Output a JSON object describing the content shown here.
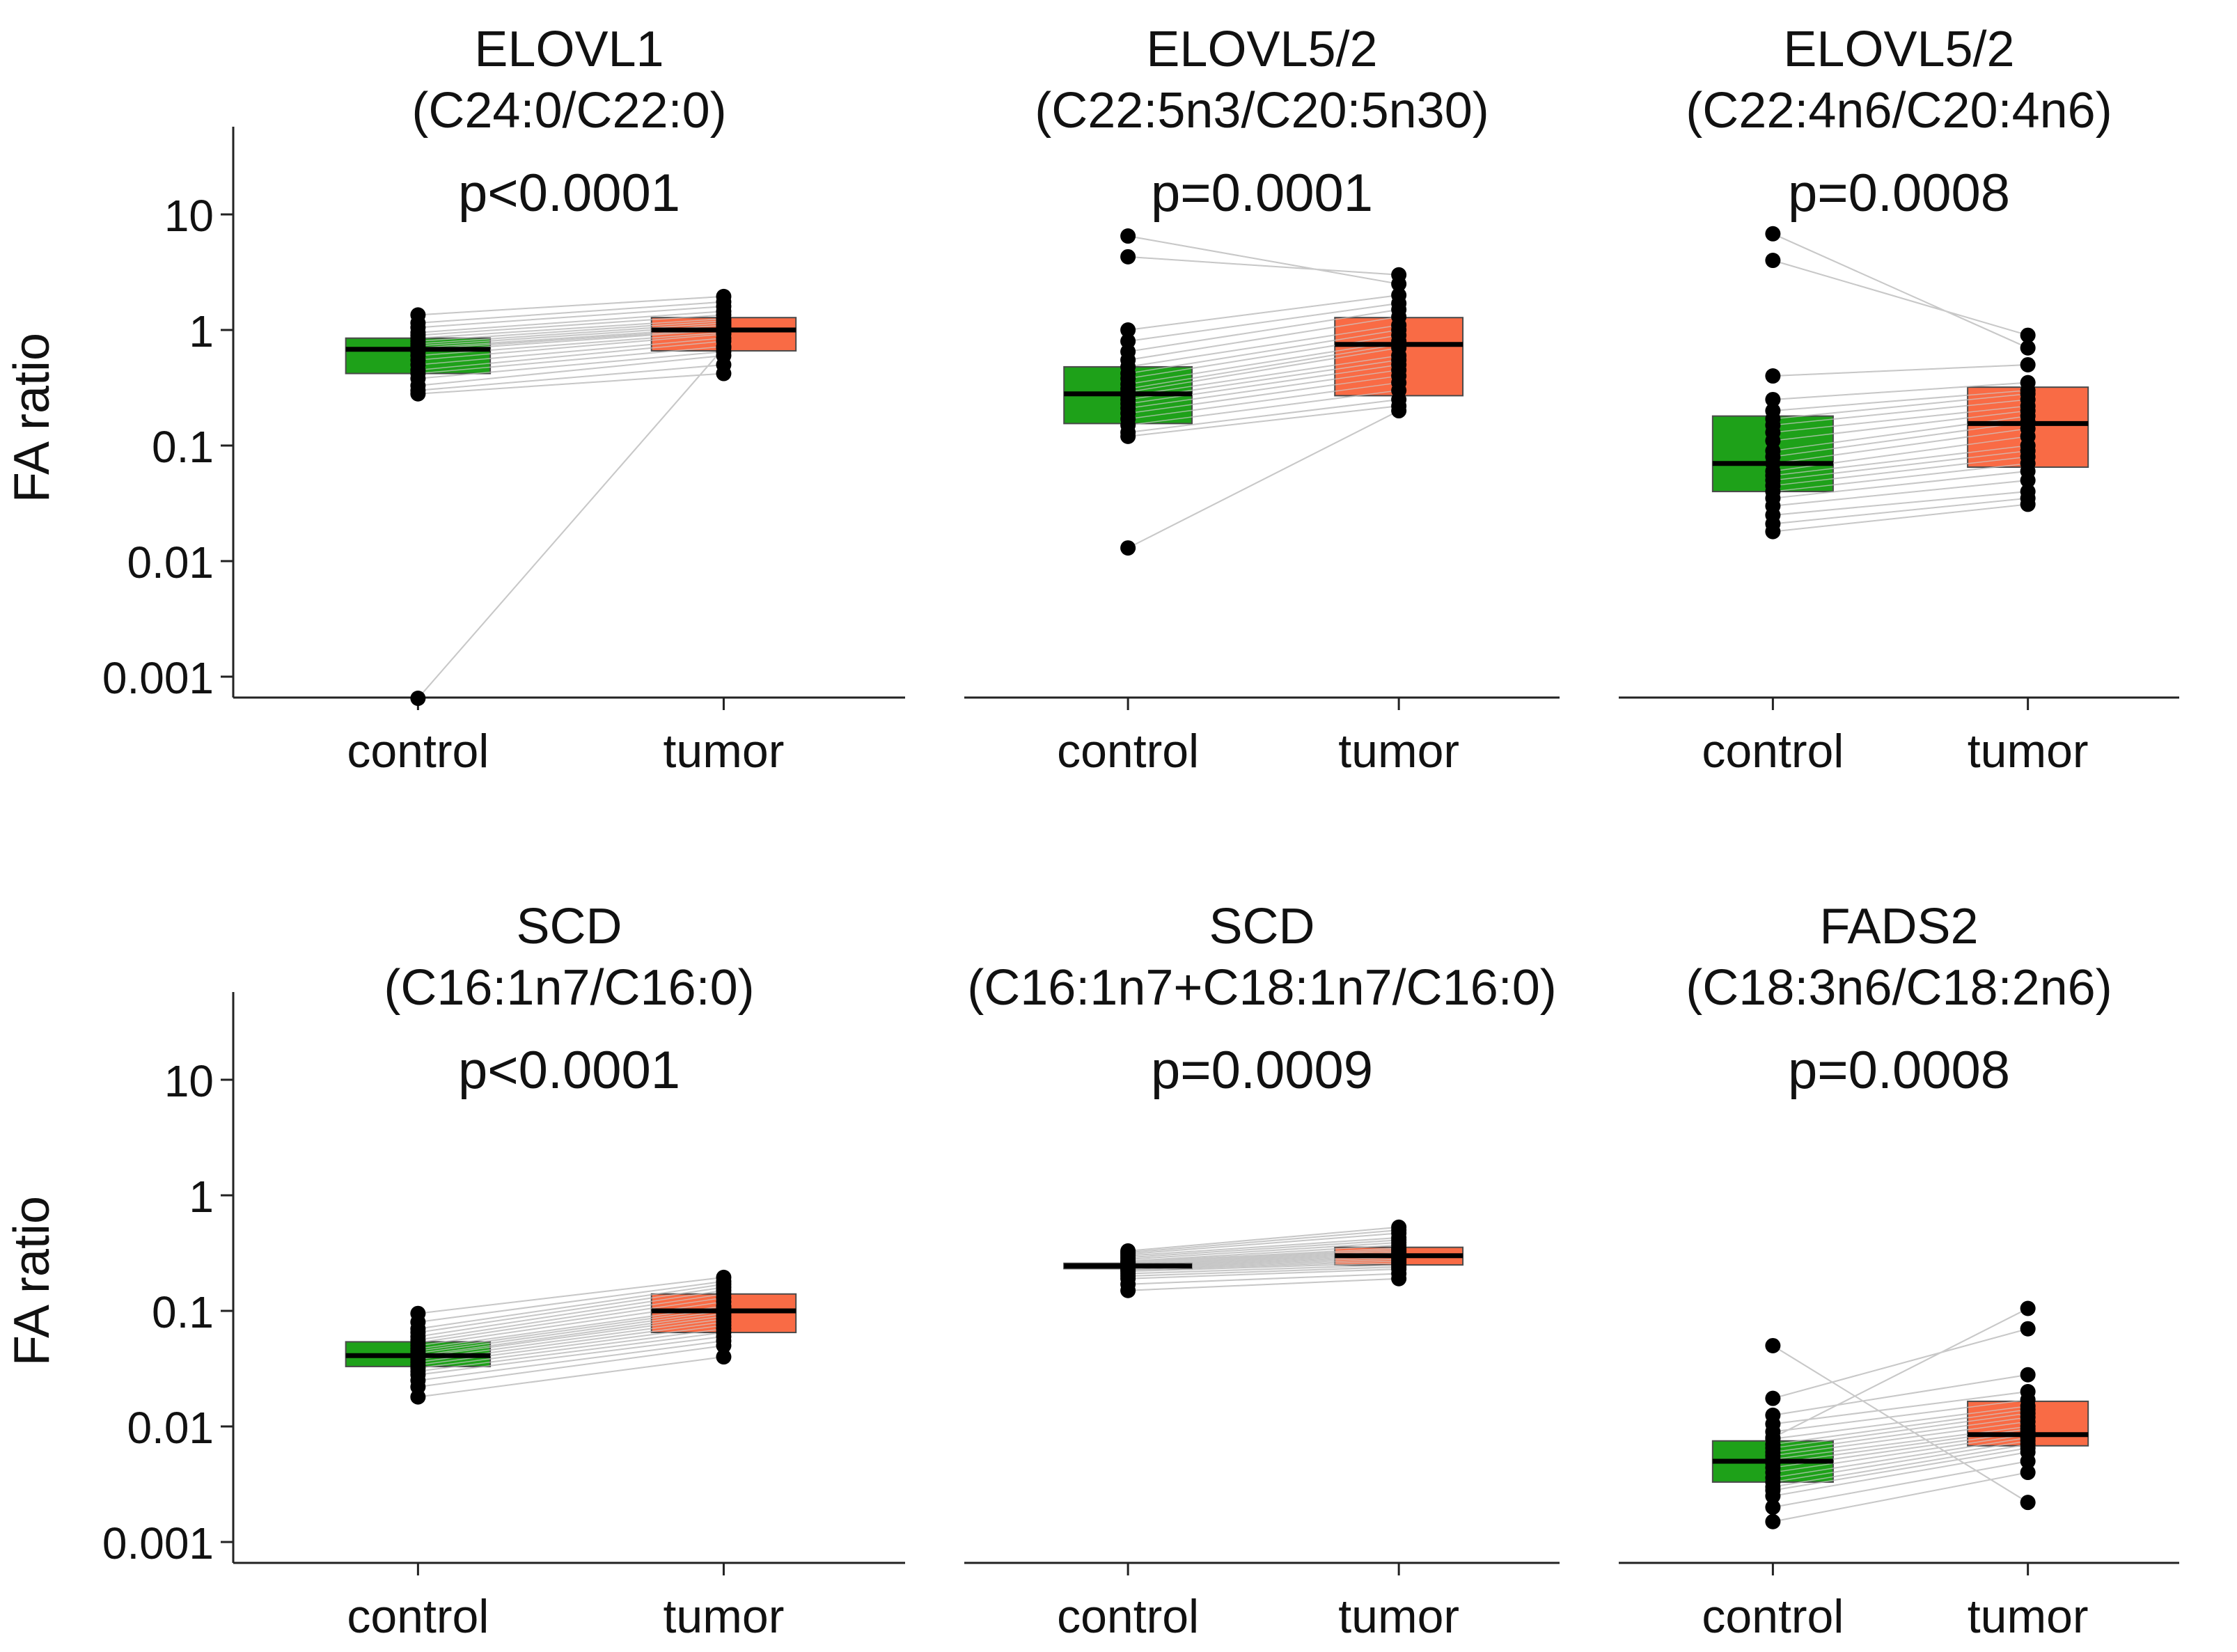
{
  "figure": {
    "y_axis_label": "FA ratio",
    "y_ticks": [
      "0.001",
      "0.01",
      "0.1",
      "1",
      "10"
    ],
    "x_categories": [
      "control",
      "tumor"
    ],
    "colors": {
      "control": "#129c0d",
      "tumor": "#f9633b",
      "median": "#000000",
      "pair_line": "#bdbdbd",
      "axis": "#222222"
    }
  },
  "chart_data": [
    {
      "type": "box",
      "title": "ELOVL1",
      "subtitle": "(C24:0/C22:0)",
      "pvalue": "p<0.0001",
      "yscale": "log",
      "ylim": [
        0.00065,
        60
      ],
      "categories": [
        "control",
        "tumor"
      ],
      "boxes": [
        {
          "name": "control",
          "q1": 0.42,
          "median": 0.68,
          "q3": 0.85
        },
        {
          "name": "tumor",
          "q1": 0.66,
          "median": 1.0,
          "q3": 1.28
        }
      ],
      "pairs": [
        [
          0.00065,
          0.7
        ],
        [
          0.28,
          0.42
        ],
        [
          0.3,
          0.5
        ],
        [
          0.33,
          0.6
        ],
        [
          0.38,
          0.65
        ],
        [
          0.42,
          0.72
        ],
        [
          0.45,
          0.8
        ],
        [
          0.5,
          0.85
        ],
        [
          0.55,
          0.92
        ],
        [
          0.6,
          0.95
        ],
        [
          0.65,
          1.0
        ],
        [
          0.68,
          1.02
        ],
        [
          0.7,
          1.05
        ],
        [
          0.73,
          1.1
        ],
        [
          0.76,
          1.15
        ],
        [
          0.8,
          1.2
        ],
        [
          0.85,
          1.25
        ],
        [
          0.9,
          1.35
        ],
        [
          0.95,
          1.45
        ],
        [
          1.05,
          1.6
        ],
        [
          1.15,
          1.75
        ],
        [
          1.35,
          1.95
        ]
      ]
    },
    {
      "type": "box",
      "title": "ELOVL5/2",
      "subtitle": "(C22:5n3/C20:5n30)",
      "pvalue": "p=0.0001",
      "yscale": "log",
      "ylim": [
        0.00065,
        60
      ],
      "categories": [
        "control",
        "tumor"
      ],
      "boxes": [
        {
          "name": "control",
          "q1": 0.155,
          "median": 0.28,
          "q3": 0.48
        },
        {
          "name": "tumor",
          "q1": 0.27,
          "median": 0.75,
          "q3": 1.28
        }
      ],
      "pairs": [
        [
          0.013,
          0.2
        ],
        [
          0.12,
          0.22
        ],
        [
          0.13,
          0.25
        ],
        [
          0.15,
          0.3
        ],
        [
          0.17,
          0.35
        ],
        [
          0.19,
          0.4
        ],
        [
          0.21,
          0.45
        ],
        [
          0.23,
          0.5
        ],
        [
          0.25,
          0.55
        ],
        [
          0.27,
          0.6
        ],
        [
          0.29,
          0.7
        ],
        [
          0.31,
          0.75
        ],
        [
          0.34,
          0.8
        ],
        [
          0.38,
          0.9
        ],
        [
          0.42,
          1.0
        ],
        [
          0.48,
          1.1
        ],
        [
          0.55,
          1.3
        ],
        [
          0.65,
          1.5
        ],
        [
          0.8,
          1.7
        ],
        [
          1.0,
          2.0
        ],
        [
          4.3,
          3.0
        ],
        [
          6.5,
          2.5
        ]
      ]
    },
    {
      "type": "box",
      "title": "ELOVL5/2",
      "subtitle": "(C22:4n6/C20:4n6)",
      "pvalue": "p=0.0008",
      "yscale": "log",
      "ylim": [
        0.00065,
        60
      ],
      "categories": [
        "control",
        "tumor"
      ],
      "boxes": [
        {
          "name": "control",
          "q1": 0.04,
          "median": 0.07,
          "q3": 0.18
        },
        {
          "name": "tumor",
          "q1": 0.065,
          "median": 0.155,
          "q3": 0.32
        }
      ],
      "pairs": [
        [
          0.018,
          0.031
        ],
        [
          0.021,
          0.035
        ],
        [
          0.025,
          0.04
        ],
        [
          0.03,
          0.05
        ],
        [
          0.035,
          0.06
        ],
        [
          0.04,
          0.07
        ],
        [
          0.045,
          0.08
        ],
        [
          0.05,
          0.09
        ],
        [
          0.055,
          0.1
        ],
        [
          0.06,
          0.12
        ],
        [
          0.07,
          0.14
        ],
        [
          0.08,
          0.16
        ],
        [
          0.09,
          0.18
        ],
        [
          0.11,
          0.2
        ],
        [
          0.13,
          0.22
        ],
        [
          0.15,
          0.25
        ],
        [
          0.17,
          0.28
        ],
        [
          0.2,
          0.3
        ],
        [
          0.25,
          0.35
        ],
        [
          0.4,
          0.5
        ],
        [
          4.0,
          0.9
        ],
        [
          6.8,
          0.7
        ]
      ]
    },
    {
      "type": "box",
      "title": "SCD",
      "subtitle": "(C16:1n7/C16:0)",
      "pvalue": "p<0.0001",
      "yscale": "log",
      "ylim": [
        0.00065,
        60
      ],
      "categories": [
        "control",
        "tumor"
      ],
      "boxes": [
        {
          "name": "control",
          "q1": 0.033,
          "median": 0.041,
          "q3": 0.054
        },
        {
          "name": "tumor",
          "q1": 0.065,
          "median": 0.1,
          "q3": 0.14
        }
      ],
      "pairs": [
        [
          0.018,
          0.04
        ],
        [
          0.022,
          0.05
        ],
        [
          0.025,
          0.055
        ],
        [
          0.028,
          0.06
        ],
        [
          0.03,
          0.065
        ],
        [
          0.032,
          0.07
        ],
        [
          0.034,
          0.075
        ],
        [
          0.036,
          0.08
        ],
        [
          0.038,
          0.085
        ],
        [
          0.04,
          0.09
        ],
        [
          0.041,
          0.095
        ],
        [
          0.043,
          0.1
        ],
        [
          0.045,
          0.105
        ],
        [
          0.047,
          0.11
        ],
        [
          0.05,
          0.12
        ],
        [
          0.053,
          0.13
        ],
        [
          0.056,
          0.14
        ],
        [
          0.06,
          0.15
        ],
        [
          0.065,
          0.16
        ],
        [
          0.07,
          0.17
        ],
        [
          0.08,
          0.18
        ],
        [
          0.095,
          0.195
        ]
      ]
    },
    {
      "type": "box",
      "title": "SCD",
      "subtitle": "(C16:1n7+C18:1n7/C16:0)",
      "pvalue": "p=0.0009",
      "yscale": "log",
      "ylim": [
        0.00065,
        60
      ],
      "categories": [
        "control",
        "tumor"
      ],
      "boxes": [
        {
          "name": "control",
          "q1": 0.232,
          "median": 0.245,
          "q3": 0.258
        },
        {
          "name": "tumor",
          "q1": 0.25,
          "median": 0.3,
          "q3": 0.355
        }
      ],
      "pairs": [
        [
          0.15,
          0.19
        ],
        [
          0.17,
          0.21
        ],
        [
          0.19,
          0.23
        ],
        [
          0.2,
          0.24
        ],
        [
          0.21,
          0.25
        ],
        [
          0.22,
          0.26
        ],
        [
          0.225,
          0.27
        ],
        [
          0.23,
          0.28
        ],
        [
          0.235,
          0.29
        ],
        [
          0.24,
          0.3
        ],
        [
          0.245,
          0.31
        ],
        [
          0.25,
          0.32
        ],
        [
          0.255,
          0.33
        ],
        [
          0.26,
          0.34
        ],
        [
          0.265,
          0.35
        ],
        [
          0.27,
          0.37
        ],
        [
          0.28,
          0.39
        ],
        [
          0.29,
          0.41
        ],
        [
          0.3,
          0.43
        ],
        [
          0.31,
          0.47
        ],
        [
          0.32,
          0.5
        ],
        [
          0.33,
          0.53
        ]
      ]
    },
    {
      "type": "box",
      "title": "FADS2",
      "subtitle": "(C18:3n6/C18:2n6)",
      "pvalue": "p=0.0008",
      "yscale": "log",
      "ylim": [
        0.00065,
        60
      ],
      "categories": [
        "control",
        "tumor"
      ],
      "boxes": [
        {
          "name": "control",
          "q1": 0.0033,
          "median": 0.005,
          "q3": 0.0075
        },
        {
          "name": "tumor",
          "q1": 0.0068,
          "median": 0.0085,
          "q3": 0.0165
        }
      ],
      "pairs": [
        [
          0.0015,
          0.004
        ],
        [
          0.002,
          0.005
        ],
        [
          0.0025,
          0.006
        ],
        [
          0.0028,
          0.0065
        ],
        [
          0.003,
          0.007
        ],
        [
          0.0033,
          0.0075
        ],
        [
          0.0036,
          0.008
        ],
        [
          0.004,
          0.0085
        ],
        [
          0.0044,
          0.009
        ],
        [
          0.0048,
          0.0095
        ],
        [
          0.0052,
          0.01
        ],
        [
          0.0056,
          0.011
        ],
        [
          0.006,
          0.012
        ],
        [
          0.0065,
          0.013
        ],
        [
          0.007,
          0.014
        ],
        [
          0.0078,
          0.015
        ],
        [
          0.009,
          0.017
        ],
        [
          0.0105,
          0.02
        ],
        [
          0.0125,
          0.028
        ],
        [
          0.0175,
          0.07
        ],
        [
          0.05,
          0.0022
        ],
        [
          0.008,
          0.105
        ]
      ]
    }
  ]
}
